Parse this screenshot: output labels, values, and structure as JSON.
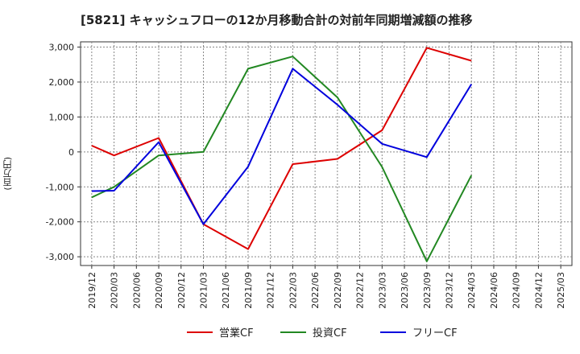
{
  "title": "[5821]  キャッシュフローの12か月移動合計の対前年同期増減額の推移",
  "chart_data": {
    "type": "line",
    "ylabel": "(百万円)",
    "ylim": [
      -3250,
      3150
    ],
    "yticks": [
      3000,
      2000,
      1000,
      0,
      -1000,
      -2000,
      -3000
    ],
    "ytick_labels": [
      "3,000",
      "2,000",
      "1,000",
      "0",
      "-1,000",
      "-2,000",
      "-3,000"
    ],
    "x": [
      "2019/12",
      "2020/03",
      "2020/06",
      "2020/09",
      "2020/12",
      "2021/03",
      "2021/06",
      "2021/09",
      "2021/12",
      "2022/03",
      "2022/06",
      "2022/09",
      "2022/12",
      "2023/03",
      "2023/06",
      "2023/09",
      "2023/12",
      "2024/03",
      "2024/06",
      "2024/09",
      "2024/12",
      "2025/03"
    ],
    "grid": true,
    "legend_position": "bottom",
    "series": [
      {
        "name": "営業CF",
        "color": "#dd0000",
        "values": [
          180,
          -100,
          null,
          400,
          null,
          -2070,
          null,
          -2780,
          null,
          -350,
          null,
          -200,
          null,
          620,
          null,
          2980,
          null,
          2610,
          null,
          null,
          null,
          null
        ]
      },
      {
        "name": "投資CF",
        "color": "#228822",
        "values": [
          -1300,
          -1000,
          null,
          -100,
          null,
          0,
          null,
          2380,
          null,
          2730,
          null,
          1560,
          null,
          -430,
          null,
          -3130,
          null,
          -670,
          null,
          null,
          null,
          null
        ]
      },
      {
        "name": "フリーCF",
        "color": "#0000dd",
        "values": [
          -1120,
          -1110,
          null,
          280,
          null,
          -2070,
          null,
          -420,
          null,
          2380,
          null,
          1350,
          null,
          230,
          null,
          -150,
          null,
          1940,
          null,
          null,
          null,
          null
        ]
      }
    ]
  }
}
